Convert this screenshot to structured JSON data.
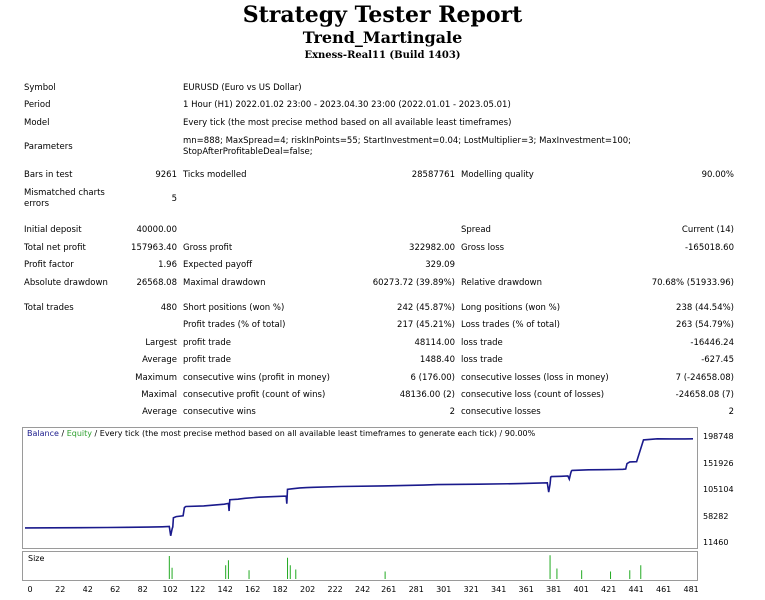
{
  "header": {
    "title": "Strategy Tester Report",
    "expert": "Trend_Martingale",
    "server": "Exness-Real11 (Build 1403)"
  },
  "settings": {
    "symbol_label": "Symbol",
    "symbol": "EURUSD (Euro vs US Dollar)",
    "period_label": "Period",
    "period": "1 Hour (H1) 2022.01.02 23:00 - 2023.04.30 23:00 (2022.01.01 - 2023.05.01)",
    "model_label": "Model",
    "model": "Every tick (the most precise method based on all available least timeframes)",
    "parameters_label": "Parameters",
    "parameters_line1": "mn=888; MaxSpread=4; riskInPoints=55; StartInvestment=0.04; LostMultiplier=3; MaxInvestment=100;",
    "parameters_line2": "StopAfterProfitableDeal=false;"
  },
  "test": {
    "bars_label": "Bars in test",
    "bars": "9261",
    "ticks_label": "Ticks modelled",
    "ticks": "28587761",
    "quality_label": "Modelling quality",
    "quality": "90.00%",
    "mismatch_label_1": "Mismatched charts",
    "mismatch_label_2": "errors",
    "mismatch": "5"
  },
  "results": {
    "initial_deposit_label": "Initial deposit",
    "initial_deposit": "40000.00",
    "spread_label": "Spread",
    "spread": "Current (14)",
    "net_profit_label": "Total net profit",
    "net_profit": "157963.40",
    "gross_profit_label": "Gross profit",
    "gross_profit": "322982.00",
    "gross_loss_label": "Gross loss",
    "gross_loss": "-165018.60",
    "profit_factor_label": "Profit factor",
    "profit_factor": "1.96",
    "expected_payoff_label": "Expected payoff",
    "expected_payoff": "329.09",
    "abs_dd_label": "Absolute drawdown",
    "abs_dd": "26568.08",
    "max_dd_label": "Maximal drawdown",
    "max_dd": "60273.72 (39.89%)",
    "rel_dd_label": "Relative drawdown",
    "rel_dd": "70.68% (51933.96)"
  },
  "trades": {
    "total_label": "Total trades",
    "total": "480",
    "short_label": "Short positions (won %)",
    "short": "242 (45.87%)",
    "long_label": "Long positions (won %)",
    "long": "238 (44.54%)",
    "profit_trades_label": "Profit trades (% of total)",
    "profit_trades": "217 (45.21%)",
    "loss_trades_label": "Loss trades (% of total)",
    "loss_trades": "263 (54.79%)",
    "largest": "Largest",
    "largest_profit_label": "profit trade",
    "largest_profit": "48114.00",
    "largest_loss_label": "loss trade",
    "largest_loss": "-16446.24",
    "average": "Average",
    "average_profit_label": "profit trade",
    "average_profit": "1488.40",
    "average_loss_label": "loss trade",
    "average_loss": "-627.45",
    "maximum": "Maximum",
    "max_cons_wins_label": "consecutive wins (profit in money)",
    "max_cons_wins": "6 (176.00)",
    "max_cons_losses_label": "consecutive losses (loss in money)",
    "max_cons_losses": "7 (-24658.08)",
    "maximal": "Maximal",
    "maximal_profit_label": "consecutive profit (count of wins)",
    "maximal_profit": "48136.00 (2)",
    "maximal_loss_label": "consecutive loss (count of losses)",
    "maximal_loss": "-24658.08 (7)",
    "average2": "Average",
    "avg_cons_wins_label": "consecutive wins",
    "avg_cons_wins": "2",
    "avg_cons_losses_label": "consecutive losses",
    "avg_cons_losses": "2"
  },
  "chart_data": {
    "type": "line",
    "legend_balance": "Balance",
    "legend_equity": "Equity",
    "legend_rest": " / Every tick (the most precise method based on all available least timeframes to generate each tick) / 90.00%",
    "volume_label": "Size",
    "colors": {
      "balance": "#1a1a8c",
      "equity": "#2ea02e",
      "volume": "#22aa22",
      "legend_balance": "#1a1a8c",
      "legend_equity": "#2ea02e"
    },
    "y_ticks": [
      "198748",
      "151926",
      "105104",
      "58282",
      "11460"
    ],
    "y_tick_values": [
      198748,
      151926,
      105104,
      58282,
      11460
    ],
    "x_ticks": [
      "0",
      "22",
      "42",
      "62",
      "82",
      "102",
      "122",
      "142",
      "162",
      "182",
      "202",
      "222",
      "242",
      "261",
      "281",
      "301",
      "321",
      "341",
      "361",
      "381",
      "401",
      "421",
      "441",
      "461",
      "481"
    ],
    "x_tick_values": [
      0,
      22,
      42,
      62,
      82,
      102,
      122,
      142,
      162,
      182,
      202,
      222,
      242,
      261,
      281,
      301,
      321,
      341,
      361,
      381,
      401,
      421,
      441,
      461,
      481
    ],
    "xlim": [
      0,
      486
    ],
    "ylim": [
      11460,
      203000
    ],
    "balance_x": [
      0,
      20,
      40,
      60,
      75,
      90,
      100,
      105,
      106,
      107,
      107.5,
      108,
      110,
      115,
      116,
      117,
      130,
      145,
      148,
      148.5,
      149,
      155,
      160,
      170,
      190,
      190.5,
      191,
      195,
      200,
      205,
      210,
      230,
      260,
      290,
      300,
      330,
      360,
      380,
      381,
      382,
      382.5,
      383,
      390,
      395,
      396,
      397,
      397.5,
      398,
      410,
      420,
      430,
      435,
      437,
      438,
      440,
      445,
      450,
      460,
      470,
      480,
      486
    ],
    "balance_y": [
      40000,
      40200,
      40400,
      40800,
      41100,
      41500,
      42000,
      42500,
      26000,
      38000,
      42000,
      58000,
      60000,
      61500,
      76000,
      78000,
      79000,
      82000,
      83500,
      70000,
      90000,
      91000,
      92500,
      94500,
      96500,
      83000,
      108500,
      109500,
      111000,
      111500,
      112000,
      113500,
      114500,
      116000,
      116800,
      117600,
      118500,
      120000,
      103500,
      118000,
      130000,
      131000,
      131500,
      132000,
      126500,
      137000,
      141000,
      142000,
      143000,
      143300,
      143600,
      144000,
      144500,
      154000,
      157000,
      157500,
      196000,
      198000,
      197900,
      197800,
      197963
    ]
  },
  "volume_data": {
    "x": [
      105,
      107,
      146,
      148,
      163,
      191,
      193,
      197,
      262,
      382,
      387,
      405,
      426,
      440,
      448
    ],
    "size": [
      0.92,
      0.45,
      0.55,
      0.75,
      0.35,
      0.85,
      0.55,
      0.38,
      0.3,
      0.95,
      0.42,
      0.35,
      0.3,
      0.35,
      0.55
    ]
  }
}
